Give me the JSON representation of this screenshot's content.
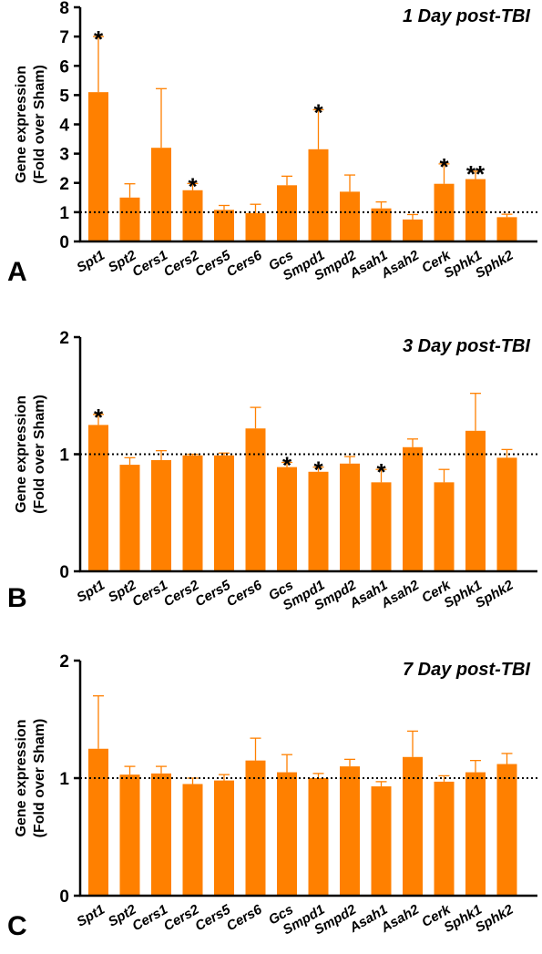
{
  "colors": {
    "bar": "#FF8000",
    "axis": "#000000",
    "reference_line": "#000000"
  },
  "ylabel_line1": "Gene expression",
  "ylabel_line2": "(Fold over Sham)",
  "chart_data": [
    {
      "type": "bar",
      "panel_label": "A",
      "title": "1 Day post-TBI",
      "ylabel": "Gene expression (Fold over Sham)",
      "ylim": [
        0,
        8
      ],
      "yticks": [
        0,
        1,
        2,
        3,
        4,
        5,
        6,
        7,
        8
      ],
      "reference_line": 1,
      "categories": [
        "Spt1",
        "Spt2",
        "Cers1",
        "Cers2",
        "Cers5",
        "Cers6",
        "Gcs",
        "Smpd1",
        "Smpd2",
        "Asah1",
        "Asah2",
        "Cerk",
        "Sphk1",
        "Sphk2"
      ],
      "values": [
        5.1,
        1.5,
        3.2,
        1.75,
        1.08,
        0.97,
        1.92,
        3.15,
        1.7,
        1.13,
        0.75,
        1.97,
        2.13,
        0.83
      ],
      "error_upper": [
        7.0,
        1.97,
        5.22,
        1.98,
        1.23,
        1.27,
        2.23,
        4.5,
        2.27,
        1.35,
        0.92,
        2.65,
        2.4,
        0.93
      ],
      "significance": [
        "*",
        "",
        "",
        "*",
        "",
        "",
        "",
        "*",
        "",
        "",
        "",
        "*",
        "**",
        ""
      ]
    },
    {
      "type": "bar",
      "panel_label": "B",
      "title": "3 Day post-TBI",
      "ylabel": "Gene expression (Fold over Sham)",
      "ylim": [
        0,
        2
      ],
      "yticks": [
        0,
        1,
        2
      ],
      "reference_line": 1,
      "categories": [
        "Spt1",
        "Spt2",
        "Cers1",
        "Cers2",
        "Cers5",
        "Cers6",
        "Gcs",
        "Smpd1",
        "Smpd2",
        "Asah1",
        "Asah2",
        "Cerk",
        "Sphk1",
        "Sphk2"
      ],
      "values": [
        1.25,
        0.91,
        0.95,
        0.99,
        0.99,
        1.22,
        0.89,
        0.85,
        0.92,
        0.76,
        1.06,
        0.76,
        1.2,
        0.97
      ],
      "error_upper": [
        1.34,
        0.97,
        1.03,
        1.0,
        1.01,
        1.4,
        0.93,
        0.89,
        0.98,
        0.87,
        1.13,
        0.87,
        1.52,
        1.04
      ],
      "significance": [
        "*",
        "",
        "",
        "",
        "",
        "",
        "*",
        "*",
        "",
        "*",
        "",
        "",
        "",
        ""
      ]
    },
    {
      "type": "bar",
      "panel_label": "C",
      "title": "7 Day post-TBI",
      "ylabel": "Gene expression (Fold over Sham)",
      "ylim": [
        0,
        2
      ],
      "yticks": [
        0,
        1,
        2
      ],
      "reference_line": 1,
      "categories": [
        "Spt1",
        "Spt2",
        "Cers1",
        "Cers2",
        "Cers5",
        "Cers6",
        "Gcs",
        "Smpd1",
        "Smpd2",
        "Asah1",
        "Asah2",
        "Cerk",
        "Sphk1",
        "Sphk2"
      ],
      "values": [
        1.25,
        1.03,
        1.04,
        0.95,
        0.98,
        1.15,
        1.05,
        1.0,
        1.1,
        0.93,
        1.18,
        0.97,
        1.05,
        1.12
      ],
      "error_upper": [
        1.7,
        1.1,
        1.1,
        1.0,
        1.03,
        1.34,
        1.2,
        1.04,
        1.16,
        0.97,
        1.4,
        1.02,
        1.15,
        1.21
      ],
      "significance": [
        "",
        "",
        "",
        "",
        "",
        "",
        "",
        "",
        "",
        "",
        "",
        "",
        "",
        ""
      ]
    }
  ]
}
